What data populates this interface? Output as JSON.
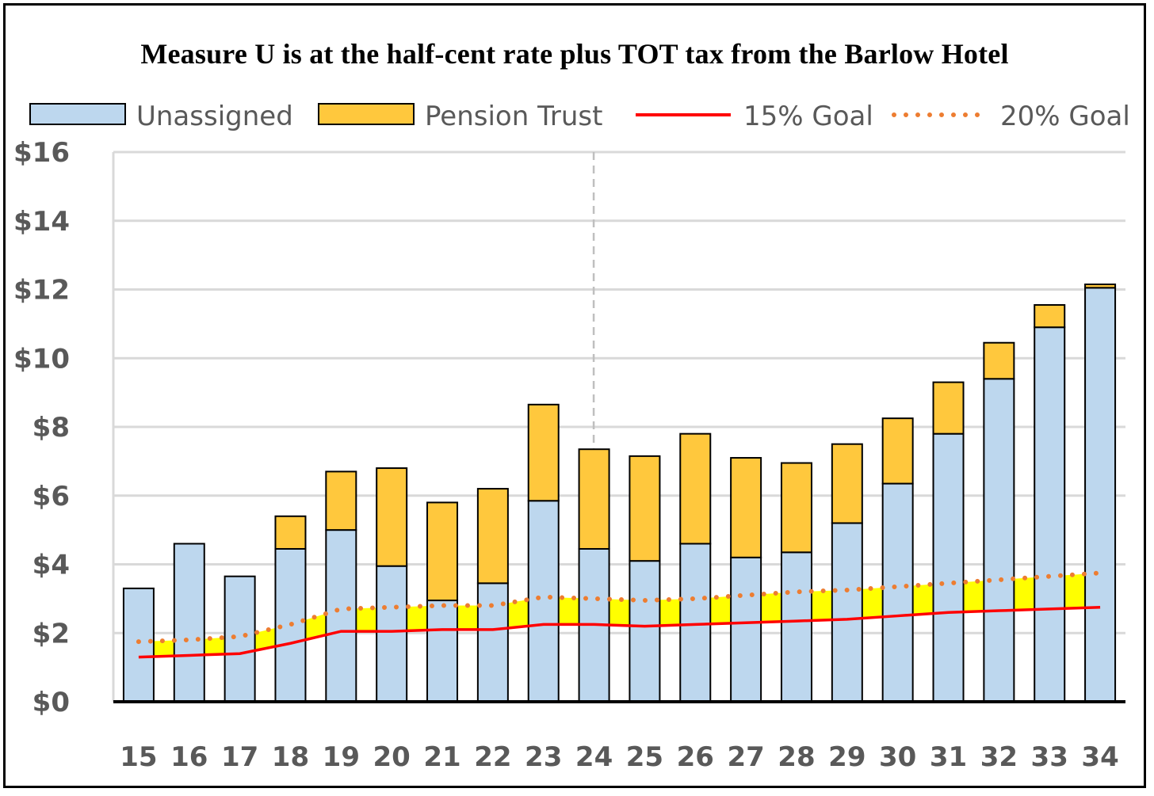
{
  "chart_data": {
    "type": "bar",
    "title": "Measure U is at the half-cent rate plus TOT tax from the Barlow Hotel",
    "categories": [
      "15",
      "16",
      "17",
      "18",
      "19",
      "20",
      "21",
      "22",
      "23",
      "24",
      "25",
      "26",
      "27",
      "28",
      "29",
      "30",
      "31",
      "32",
      "33",
      "34"
    ],
    "stacked": true,
    "series": [
      {
        "name": "Unassigned",
        "kind": "bar",
        "color": "#bdd7ee",
        "values": [
          3.3,
          4.6,
          3.65,
          4.45,
          5.0,
          3.95,
          2.95,
          3.45,
          5.85,
          4.45,
          4.1,
          4.6,
          4.2,
          4.35,
          5.2,
          6.35,
          7.8,
          9.4,
          10.9,
          12.05
        ]
      },
      {
        "name": "Pension Trust",
        "kind": "bar",
        "color": "#ffc83d",
        "values": [
          0,
          0,
          0,
          0.95,
          1.7,
          2.85,
          2.85,
          2.75,
          2.8,
          2.9,
          3.05,
          3.2,
          2.9,
          2.6,
          2.3,
          1.9,
          1.5,
          1.05,
          0.65,
          0.1
        ]
      },
      {
        "name": "15% Goal",
        "kind": "line",
        "color": "#ff0000",
        "values": [
          1.3,
          1.35,
          1.4,
          1.7,
          2.05,
          2.05,
          2.1,
          2.1,
          2.25,
          2.25,
          2.2,
          2.25,
          2.3,
          2.35,
          2.4,
          2.5,
          2.6,
          2.65,
          2.7,
          2.75
        ]
      },
      {
        "name": "20% Goal",
        "kind": "line",
        "style": "dotted",
        "color": "#ed7d31",
        "values": [
          1.75,
          1.8,
          1.9,
          2.25,
          2.7,
          2.75,
          2.8,
          2.8,
          3.05,
          3.0,
          2.95,
          3.0,
          3.1,
          3.2,
          3.25,
          3.35,
          3.45,
          3.55,
          3.65,
          3.75
        ]
      }
    ],
    "gap_fill_color": "#ffff00",
    "yticks": [
      "$0",
      "$2",
      "$4",
      "$6",
      "$8",
      "$10",
      "$12",
      "$14",
      "$16"
    ],
    "ylim": [
      0,
      16
    ],
    "divider_after_category": "24",
    "grid": true,
    "legend": "top"
  }
}
